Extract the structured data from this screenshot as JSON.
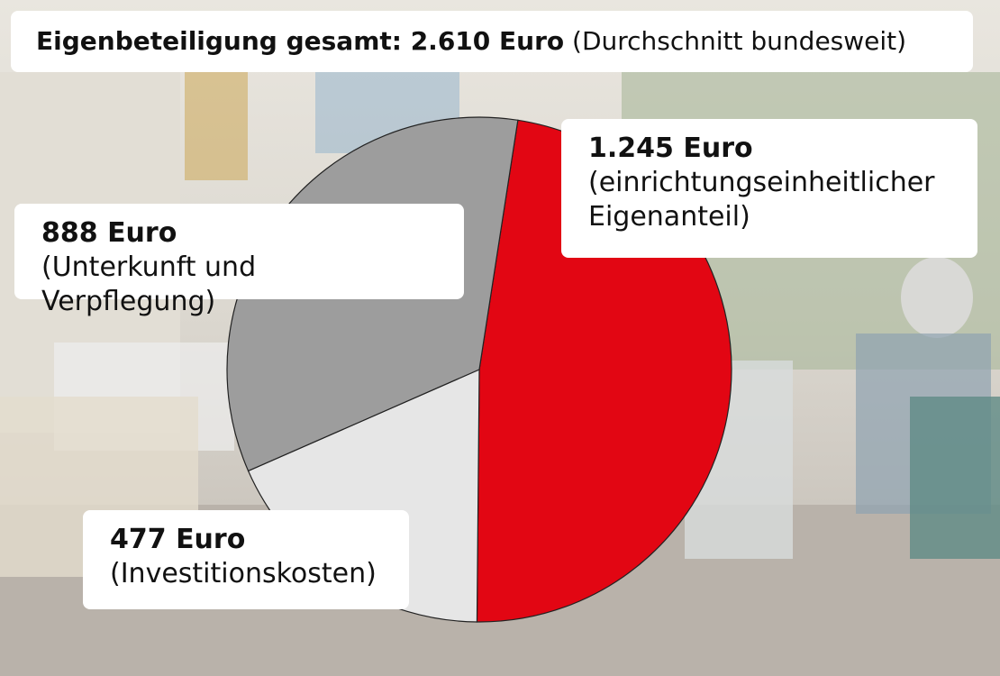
{
  "title": {
    "bold": "Eigenbeteiligung gesamt: 2.610 Euro",
    "normal": "(Durchschnitt bundesweit)"
  },
  "chart_data": {
    "type": "pie",
    "title": "Eigenbeteiligung gesamt: 2.610 Euro (Durchschnitt bundesweit)",
    "total": 2610,
    "unit": "Euro",
    "slices": [
      {
        "value": 1245,
        "value_label": "1.245 Euro",
        "label_lines": [
          "(einrichtungseinheitlicher",
          "Eigenanteil)"
        ],
        "color": "#e20613"
      },
      {
        "value": 477,
        "value_label": "477 Euro",
        "label_lines": [
          "(Investitionskosten)"
        ],
        "color": "#e6e6e6"
      },
      {
        "value": 888,
        "value_label": "888 Euro",
        "label_lines": [
          "(Unterkunft und Verpflegung)"
        ],
        "color": "#9d9d9d"
      }
    ]
  }
}
